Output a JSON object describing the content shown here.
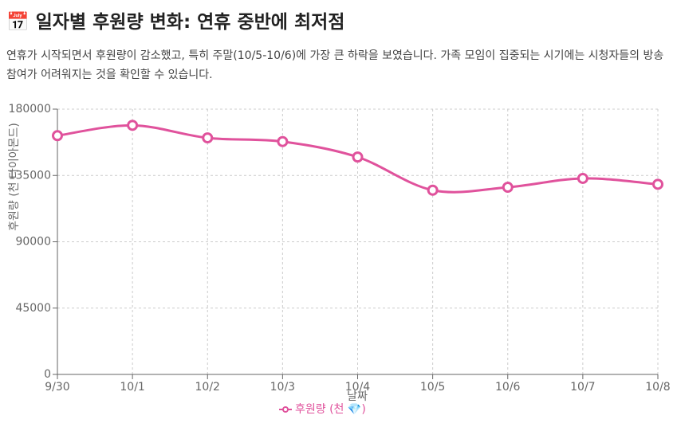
{
  "header": {
    "title": "📅 일자별 후원량 변화: 연휴 중반에 최저점",
    "description": "연휴가 시작되면서 후원량이 감소했고, 특히 주말(10/5-10/6)에 가장 큰 하락을 보였습니다. 가족 모임이 집중되는 시기에는 시청자들의 방송 참여가 어려워지는 것을 확인할 수 있습니다."
  },
  "chart_data": {
    "type": "line",
    "x_label": "날짜",
    "y_label": "후원량 (천 다이아몬드)",
    "categories": [
      "9/30",
      "10/1",
      "10/2",
      "10/3",
      "10/4",
      "10/5",
      "10/6",
      "10/7",
      "10/8"
    ],
    "series": [
      {
        "name": "후원량 (천 💎)",
        "color": "#e0529c",
        "values": [
          162000,
          169000,
          160500,
          158000,
          147500,
          125000,
          127000,
          133000,
          129000
        ]
      }
    ],
    "ylim": [
      0,
      180000
    ],
    "yticks": [
      0,
      45000,
      90000,
      135000,
      180000
    ],
    "grid": true
  }
}
